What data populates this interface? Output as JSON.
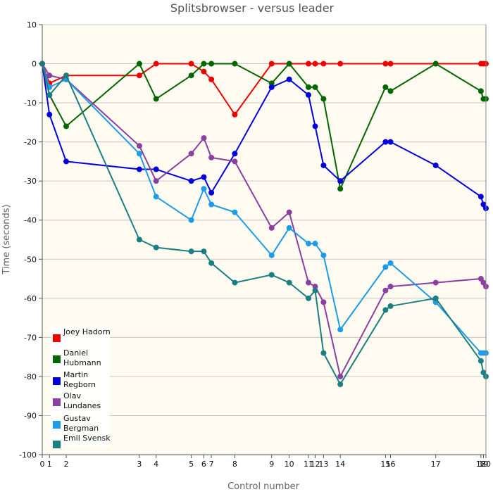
{
  "chart_data": {
    "type": "line",
    "title": "Splitsbrowser - versus leader",
    "xlabel": "Control number",
    "ylabel": "Time (seconds)",
    "xlim": [
      0,
      20
    ],
    "ylim": [
      -100,
      10
    ],
    "y_ticks": [
      10,
      0,
      -10,
      -20,
      -30,
      -40,
      -50,
      -60,
      -70,
      -80,
      -90,
      -100
    ],
    "x_tick_labels": [
      "0",
      "1",
      "2",
      "3",
      "4",
      "5",
      "6",
      "7",
      "8",
      "9",
      "10",
      "11",
      "12",
      "13",
      "14",
      "15",
      "16",
      "17",
      "18",
      "19",
      "20"
    ],
    "x_positions": [
      0,
      0.43,
      1.43,
      5.8,
      6.8,
      8.9,
      9.65,
      10.1,
      11.5,
      13.7,
      14.75,
      15.9,
      16.3,
      16.8,
      17.8,
      20.5,
      20.8,
      23.5,
      26.2,
      26.35,
      26.5
    ],
    "grid": true,
    "legend_position": "bottom-left",
    "series": [
      {
        "name": "Joey Hadorn",
        "color": "#ee0000",
        "values": [
          0,
          -5,
          -3,
          -3,
          0,
          0,
          -2,
          -4,
          -13,
          0,
          0,
          0,
          0,
          0,
          0,
          0,
          0,
          0,
          0,
          0,
          0
        ]
      },
      {
        "name": "Daniel Hubmann",
        "color": "#006600",
        "values": [
          0,
          -8,
          -16,
          0,
          -9,
          -3,
          0,
          0,
          0,
          -5,
          0,
          -6,
          -6,
          -9,
          -32,
          -6,
          -7,
          0,
          -7,
          -9,
          -9
        ]
      },
      {
        "name": "Martin Regborn",
        "color": "#0000dd",
        "values": [
          0,
          -13,
          -25,
          -27,
          -27,
          -30,
          -29,
          -33,
          -23,
          -6,
          -4,
          -8,
          -16,
          -26,
          -30,
          -20,
          -20,
          -26,
          -34,
          -36,
          -37
        ]
      },
      {
        "name": "Olav Lundanes",
        "color": "#8b3fa0",
        "values": [
          0,
          -3,
          -4,
          -21,
          -30,
          -23,
          -19,
          -24,
          -25,
          -42,
          -38,
          -56,
          -57,
          -61,
          -80,
          -58,
          -57,
          -56,
          -55,
          -56,
          -57
        ]
      },
      {
        "name": "Gustav Bergman",
        "color": "#1e9ce8",
        "values": [
          0,
          -6,
          -4,
          -23,
          -34,
          -40,
          -32,
          -36,
          -38,
          -49,
          -42,
          -46,
          -46,
          -49,
          -68,
          -52,
          -51,
          -61,
          -74,
          -74,
          -74
        ]
      },
      {
        "name": "Emil Svensk",
        "color": "#1a7f7f",
        "values": [
          0,
          -8,
          -3,
          -45,
          -47,
          -48,
          -48,
          -51,
          -56,
          -54,
          -56,
          -60,
          -58,
          -74,
          -82,
          -63,
          -62,
          -60,
          -76,
          -79,
          -80
        ]
      }
    ]
  }
}
